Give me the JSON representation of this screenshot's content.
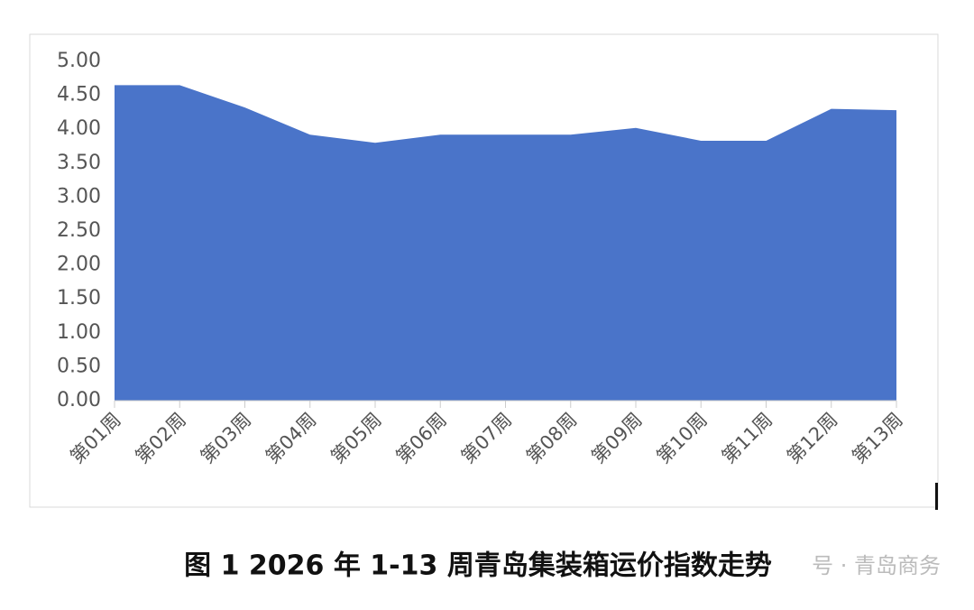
{
  "chart_data": {
    "type": "area",
    "categories": [
      "第01周",
      "第02周",
      "第03周",
      "第04周",
      "第05周",
      "第06周",
      "第07周",
      "第08周",
      "第09周",
      "第10周",
      "第11周",
      "第12周",
      "第13周"
    ],
    "values": [
      4.65,
      4.65,
      4.32,
      3.92,
      3.8,
      3.92,
      3.92,
      3.92,
      4.02,
      3.83,
      3.83,
      4.3,
      4.28
    ],
    "color": "#4a74c9",
    "ylim": [
      0,
      5
    ],
    "yticks": [
      {
        "value": 0,
        "label": "0.00"
      },
      {
        "value": 0.5,
        "label": "0.50"
      },
      {
        "value": 1,
        "label": "1.00"
      },
      {
        "value": 1.5,
        "label": "1.50"
      },
      {
        "value": 2,
        "label": "2.00"
      },
      {
        "value": 2.5,
        "label": "2.50"
      },
      {
        "value": 3,
        "label": "3.00"
      },
      {
        "value": 3.5,
        "label": "3.50"
      },
      {
        "value": 4,
        "label": "4.00"
      },
      {
        "value": 4.5,
        "label": "4.50"
      },
      {
        "value": 5,
        "label": "5.00"
      }
    ],
    "caption": "图 1 2026 年 1-13 周青岛集装箱运价指数走势",
    "watermark": "号 · 青岛商务"
  }
}
